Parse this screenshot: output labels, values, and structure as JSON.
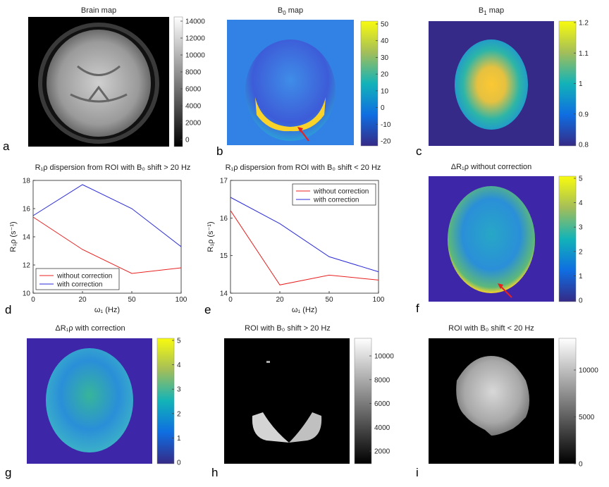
{
  "panels": {
    "a": {
      "letter": "a",
      "title": "Brain map",
      "cbar_ticks": [
        "14000",
        "12000",
        "10000",
        "8000",
        "6000",
        "4000",
        "2000",
        "0"
      ]
    },
    "b": {
      "letter": "b",
      "title_main": "B",
      "title_sub": "0",
      "title_rest": " map",
      "cbar_ticks": [
        "50",
        "40",
        "30",
        "20",
        "10",
        "0",
        "-10",
        "-20"
      ]
    },
    "c": {
      "letter": "c",
      "title_main": "B",
      "title_sub": "1",
      "title_rest": " map",
      "cbar_ticks": [
        "1.2",
        "1.1",
        "1",
        "0.9",
        "0.8"
      ]
    },
    "d": {
      "letter": "d",
      "title": "R₁ρ dispersion from ROI with B₀ shift > 20 Hz"
    },
    "e": {
      "letter": "e",
      "title": "R₁ρ dispersion from ROI with B₀ shift < 20 Hz"
    },
    "f": {
      "letter": "f",
      "title": "ΔR₁ρ without correction",
      "cbar_ticks": [
        "5",
        "4",
        "3",
        "2",
        "1",
        "0"
      ]
    },
    "g": {
      "letter": "g",
      "title": "ΔR₁ρ with correction",
      "cbar_ticks": [
        "5",
        "4",
        "3",
        "2",
        "1",
        "0"
      ]
    },
    "h": {
      "letter": "h",
      "title": "ROI with B₀ shift > 20 Hz",
      "cbar_ticks": [
        "10000",
        "8000",
        "6000",
        "4000",
        "2000"
      ]
    },
    "i": {
      "letter": "i",
      "title": "ROI with B₀ shift < 20 Hz",
      "cbar_ticks": [
        "10000",
        "5000",
        "0"
      ]
    }
  },
  "chart_data": [
    {
      "type": "line",
      "title": "R₁ρ dispersion from ROI with B₀ shift > 20 Hz",
      "xlabel": "ω₁ (Hz)",
      "ylabel": "R₁ρ (s⁻¹)",
      "x": [
        0,
        20,
        50,
        100
      ],
      "xtick_labels": [
        "0",
        "20",
        "50",
        "100"
      ],
      "ylim": [
        10,
        18
      ],
      "yticks": [
        "10",
        "12",
        "14",
        "16",
        "18"
      ],
      "legend_position": "bottom-left",
      "series": [
        {
          "name": "without correction",
          "color": "#e8201f",
          "values": [
            15.4,
            13.1,
            11.4,
            11.8
          ]
        },
        {
          "name": "with correction",
          "color": "#2a2ad8",
          "values": [
            15.5,
            17.7,
            16.0,
            13.3
          ]
        }
      ]
    },
    {
      "type": "line",
      "title": "R₁ρ dispersion from ROI with B₀ shift < 20 Hz",
      "xlabel": "ω₁ (Hz)",
      "ylabel": "R₁ρ (s⁻¹)",
      "x": [
        0,
        20,
        50,
        100
      ],
      "xtick_labels": [
        "0",
        "20",
        "50",
        "100"
      ],
      "ylim": [
        14,
        17
      ],
      "yticks": [
        "14",
        "15",
        "16",
        "17"
      ],
      "legend_position": "top-right",
      "series": [
        {
          "name": "without correction",
          "color": "#e8201f",
          "values": [
            16.2,
            14.22,
            14.48,
            14.35
          ]
        },
        {
          "name": "with correction",
          "color": "#2a2ad8",
          "values": [
            16.55,
            15.85,
            14.97,
            14.57
          ]
        }
      ]
    }
  ],
  "colors": {
    "parula_dark": "#3e26a8",
    "parula_bg": "#352a87",
    "b0_bg": "#3282e6",
    "yellow": "#f9fb0e"
  }
}
